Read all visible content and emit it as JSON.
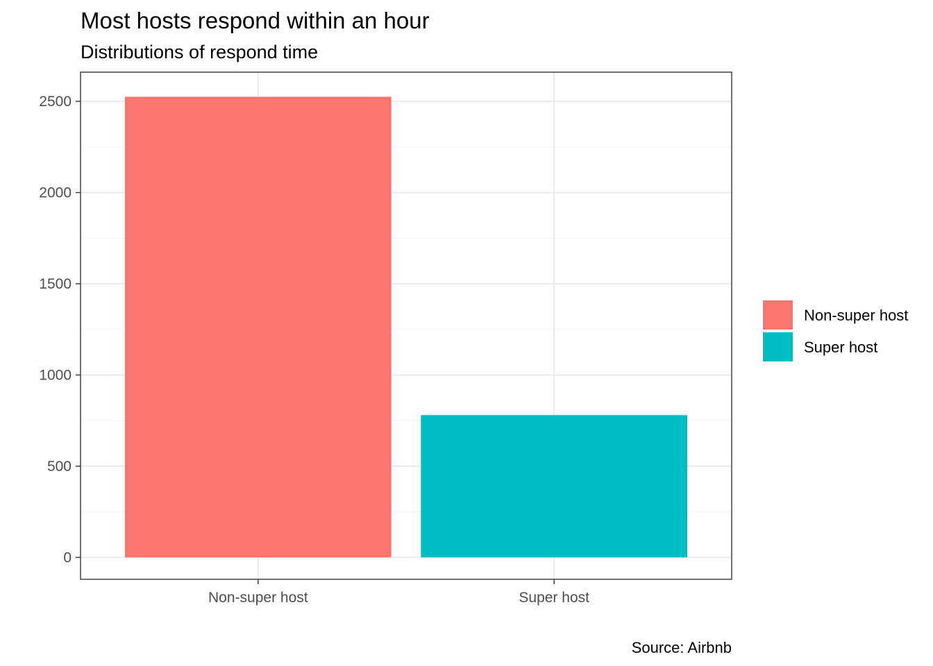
{
  "chart_data": {
    "type": "bar",
    "title": "Most hosts respond within an hour",
    "subtitle": "Distributions of respond time",
    "caption": "Source: Airbnb",
    "xlabel": "",
    "ylabel": "",
    "categories": [
      "Non-super host",
      "Super host"
    ],
    "values": [
      2525,
      780
    ],
    "colors": [
      "#F8766D",
      "#00BFC4"
    ],
    "ylim": [
      -120,
      2660
    ],
    "y_ticks": [
      0,
      500,
      1000,
      1500,
      2000,
      2500
    ],
    "y_minor_ticks": [
      250,
      750,
      1250,
      1750,
      2250
    ],
    "grid": true,
    "legend": {
      "position": "right",
      "entries": [
        {
          "label": "Non-super host",
          "color": "#F8766D"
        },
        {
          "label": "Super host",
          "color": "#00BFC4"
        }
      ]
    }
  }
}
